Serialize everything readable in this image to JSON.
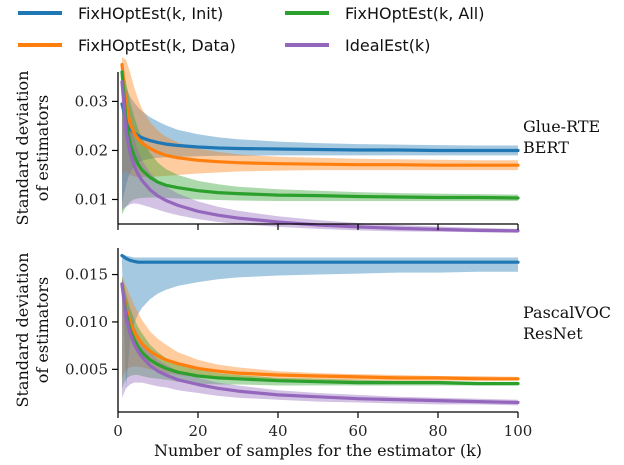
{
  "legend": [
    {
      "label": "FixHOptEst(k, Init)",
      "color": "#1f77b4"
    },
    {
      "label": "FixHOptEst(k, All)",
      "color": "#2ca02c"
    },
    {
      "label": "FixHOptEst(k, Data)",
      "color": "#ff7f0e"
    },
    {
      "label": "IdealEst(k)",
      "color": "#9467bd"
    }
  ],
  "xlabel": "Number of samples for the estimator (k)",
  "chart_data": [
    {
      "type": "line",
      "panel": "top",
      "label_lines": [
        "Glue-RTE",
        "BERT"
      ],
      "ylabel_lines": [
        "Standard deviation",
        "of estimators"
      ],
      "xlim": [
        0,
        100
      ],
      "ylim": [
        0.005,
        0.036
      ],
      "xticks": [
        0,
        20,
        40,
        60,
        80,
        100
      ],
      "yticks": [
        0.01,
        0.02,
        0.03
      ],
      "ytick_labels": [
        "0.01",
        "0.02",
        "0.03"
      ],
      "x": [
        1,
        2,
        3,
        4,
        5,
        6,
        8,
        10,
        12,
        15,
        20,
        25,
        30,
        40,
        50,
        60,
        70,
        80,
        90,
        100
      ],
      "series": [
        {
          "name": "FixHOptEst(k, Init)",
          "color": "#1f77b4",
          "values": [
            0.0295,
            0.0262,
            0.0245,
            0.0236,
            0.023,
            0.0226,
            0.022,
            0.0216,
            0.0213,
            0.021,
            0.0207,
            0.0205,
            0.0204,
            0.0203,
            0.0202,
            0.0201,
            0.0201,
            0.02,
            0.02,
            0.02
          ],
          "lower": [
            0.009,
            0.013,
            0.0155,
            0.0168,
            0.0175,
            0.0179,
            0.0183,
            0.0185,
            0.0186,
            0.0187,
            0.0188,
            0.0189,
            0.0189,
            0.019,
            0.019,
            0.019,
            0.019,
            0.019,
            0.019,
            0.019
          ],
          "upper": [
            0.035,
            0.033,
            0.031,
            0.0298,
            0.0288,
            0.028,
            0.0268,
            0.0259,
            0.0251,
            0.0242,
            0.0233,
            0.0227,
            0.0223,
            0.0218,
            0.0215,
            0.0213,
            0.0212,
            0.0211,
            0.021,
            0.021
          ]
        },
        {
          "name": "FixHOptEst(k, Data)",
          "color": "#ff7f0e",
          "values": [
            0.0375,
            0.0295,
            0.0255,
            0.0236,
            0.0224,
            0.0215,
            0.0204,
            0.0196,
            0.019,
            0.0185,
            0.018,
            0.0177,
            0.0175,
            0.0173,
            0.0172,
            0.0171,
            0.0171,
            0.017,
            0.017,
            0.017
          ],
          "lower": [
            0.015,
            0.016,
            0.015,
            0.0147,
            0.0146,
            0.0146,
            0.0146,
            0.0147,
            0.0148,
            0.015,
            0.0153,
            0.0155,
            0.0157,
            0.0159,
            0.016,
            0.016,
            0.016,
            0.016,
            0.016,
            0.016
          ],
          "upper": [
            0.039,
            0.0385,
            0.036,
            0.033,
            0.0305,
            0.0285,
            0.0258,
            0.024,
            0.0228,
            0.0216,
            0.0204,
            0.0197,
            0.0192,
            0.0187,
            0.0185,
            0.0183,
            0.0182,
            0.0181,
            0.018,
            0.018
          ]
        },
        {
          "name": "FixHOptEst(k, All)",
          "color": "#2ca02c",
          "values": [
            0.036,
            0.026,
            0.0215,
            0.019,
            0.0172,
            0.016,
            0.0145,
            0.0135,
            0.0129,
            0.0124,
            0.0118,
            0.0114,
            0.0112,
            0.0109,
            0.0108,
            0.0106,
            0.0105,
            0.0104,
            0.0104,
            0.0103
          ],
          "lower": [
            0.007,
            0.0085,
            0.0095,
            0.01,
            0.0102,
            0.0103,
            0.0104,
            0.0104,
            0.0103,
            0.0102,
            0.01,
            0.0099,
            0.0098,
            0.0097,
            0.0097,
            0.0097,
            0.0097,
            0.0097,
            0.0097,
            0.0097
          ],
          "upper": [
            0.038,
            0.034,
            0.03,
            0.027,
            0.0245,
            0.0225,
            0.0195,
            0.0175,
            0.0162,
            0.015,
            0.0138,
            0.0131,
            0.0126,
            0.0121,
            0.0118,
            0.0115,
            0.0113,
            0.0112,
            0.0111,
            0.011
          ]
        },
        {
          "name": "IdealEst(k)",
          "color": "#9467bd",
          "values": [
            0.034,
            0.024,
            0.0196,
            0.017,
            0.0152,
            0.0139,
            0.012,
            0.0107,
            0.0098,
            0.0088,
            0.0076,
            0.0068,
            0.0062,
            0.0054,
            0.0048,
            0.0044,
            0.0041,
            0.0039,
            0.0037,
            0.0036
          ],
          "lower": [
            0.008,
            0.0085,
            0.009,
            0.0092,
            0.0091,
            0.0089,
            0.0084,
            0.0079,
            0.0074,
            0.0068,
            0.006,
            0.0054,
            0.005,
            0.0044,
            0.004,
            0.0037,
            0.0035,
            0.0034,
            0.0033,
            0.0032
          ],
          "upper": [
            0.036,
            0.031,
            0.026,
            0.0225,
            0.02,
            0.018,
            0.0155,
            0.0138,
            0.0126,
            0.0112,
            0.0096,
            0.0085,
            0.0077,
            0.0066,
            0.0058,
            0.0052,
            0.0048,
            0.0045,
            0.0042,
            0.004
          ]
        }
      ]
    },
    {
      "type": "line",
      "panel": "bottom",
      "label_lines": [
        "PascalVOC",
        "ResNet"
      ],
      "ylabel_lines": [
        "Standard deviation",
        "of estimators"
      ],
      "xlim": [
        0,
        100
      ],
      "ylim": [
        0.0005,
        0.0178
      ],
      "xticks": [
        0,
        20,
        40,
        60,
        80,
        100
      ],
      "yticks": [
        0.005,
        0.01,
        0.015
      ],
      "ytick_labels": [
        "0.005",
        "0.010",
        "0.015"
      ],
      "x": [
        1,
        2,
        3,
        4,
        5,
        6,
        8,
        10,
        12,
        15,
        20,
        25,
        30,
        40,
        50,
        60,
        70,
        80,
        90,
        100
      ],
      "series": [
        {
          "name": "FixHOptEst(k, Init)",
          "color": "#1f77b4",
          "values": [
            0.017,
            0.0167,
            0.0165,
            0.0164,
            0.0163,
            0.0163,
            0.0163,
            0.0163,
            0.0163,
            0.0163,
            0.0163,
            0.0163,
            0.0163,
            0.0163,
            0.0163,
            0.0163,
            0.0163,
            0.0163,
            0.0163,
            0.0163
          ],
          "lower": [
            0.016,
            0.003,
            0.008,
            0.0098,
            0.0108,
            0.0115,
            0.0124,
            0.013,
            0.0134,
            0.0138,
            0.0142,
            0.0145,
            0.0147,
            0.0149,
            0.015,
            0.0151,
            0.0152,
            0.0152,
            0.0153,
            0.0153
          ],
          "upper": [
            0.0172,
            0.017,
            0.0169,
            0.0168,
            0.0168,
            0.0168,
            0.0168,
            0.0168,
            0.0168,
            0.0168,
            0.0168,
            0.0168,
            0.0168,
            0.0168,
            0.0168,
            0.0168,
            0.0168,
            0.0168,
            0.0168,
            0.0168
          ]
        },
        {
          "name": "FixHOptEst(k, Data)",
          "color": "#ff7f0e",
          "values": [
            0.014,
            0.0115,
            0.01,
            0.009,
            0.0083,
            0.0077,
            0.0069,
            0.0064,
            0.006,
            0.0056,
            0.0051,
            0.0048,
            0.0046,
            0.0044,
            0.0043,
            0.0042,
            0.0041,
            0.0041,
            0.004,
            0.004
          ],
          "lower": [
            0.004,
            0.005,
            0.0052,
            0.0053,
            0.0053,
            0.0052,
            0.005,
            0.0048,
            0.0046,
            0.0044,
            0.0042,
            0.004,
            0.0039,
            0.0038,
            0.0038,
            0.0038,
            0.0038,
            0.0038,
            0.0038,
            0.0038
          ],
          "upper": [
            0.0148,
            0.0138,
            0.0128,
            0.0118,
            0.011,
            0.0102,
            0.009,
            0.0082,
            0.0076,
            0.0068,
            0.006,
            0.0055,
            0.0052,
            0.0048,
            0.0046,
            0.0045,
            0.0044,
            0.0043,
            0.0043,
            0.0042
          ]
        },
        {
          "name": "FixHOptEst(k, All)",
          "color": "#2ca02c",
          "values": [
            0.014,
            0.011,
            0.0092,
            0.0082,
            0.0074,
            0.0068,
            0.006,
            0.0055,
            0.0051,
            0.0047,
            0.0043,
            0.0041,
            0.004,
            0.0038,
            0.0037,
            0.0036,
            0.0036,
            0.0036,
            0.0035,
            0.0035
          ],
          "lower": [
            0.003,
            0.004,
            0.0043,
            0.0044,
            0.0044,
            0.0043,
            0.0041,
            0.004,
            0.0039,
            0.0037,
            0.0035,
            0.0034,
            0.0034,
            0.0033,
            0.0033,
            0.0033,
            0.0033,
            0.0033,
            0.0033,
            0.0033
          ],
          "upper": [
            0.0148,
            0.013,
            0.0115,
            0.0104,
            0.0095,
            0.0088,
            0.0076,
            0.0068,
            0.0062,
            0.0056,
            0.005,
            0.0046,
            0.0044,
            0.0041,
            0.004,
            0.0039,
            0.0038,
            0.0038,
            0.0037,
            0.0037
          ]
        },
        {
          "name": "IdealEst(k)",
          "color": "#9467bd",
          "values": [
            0.014,
            0.0105,
            0.0088,
            0.0077,
            0.0069,
            0.0063,
            0.0054,
            0.0048,
            0.0044,
            0.0039,
            0.0034,
            0.003,
            0.0027,
            0.0023,
            0.0021,
            0.0019,
            0.0018,
            0.0017,
            0.0016,
            0.0015
          ],
          "lower": [
            0.002,
            0.003,
            0.0034,
            0.0036,
            0.0036,
            0.0036,
            0.0034,
            0.0032,
            0.0031,
            0.0028,
            0.0025,
            0.0022,
            0.002,
            0.0018,
            0.0016,
            0.0015,
            0.0014,
            0.0013,
            0.0013,
            0.0012
          ],
          "upper": [
            0.0146,
            0.0125,
            0.0108,
            0.0096,
            0.0087,
            0.0079,
            0.0068,
            0.006,
            0.0055,
            0.0048,
            0.0041,
            0.0036,
            0.0033,
            0.0028,
            0.0025,
            0.0023,
            0.0021,
            0.002,
            0.0019,
            0.0018
          ]
        }
      ]
    }
  ]
}
